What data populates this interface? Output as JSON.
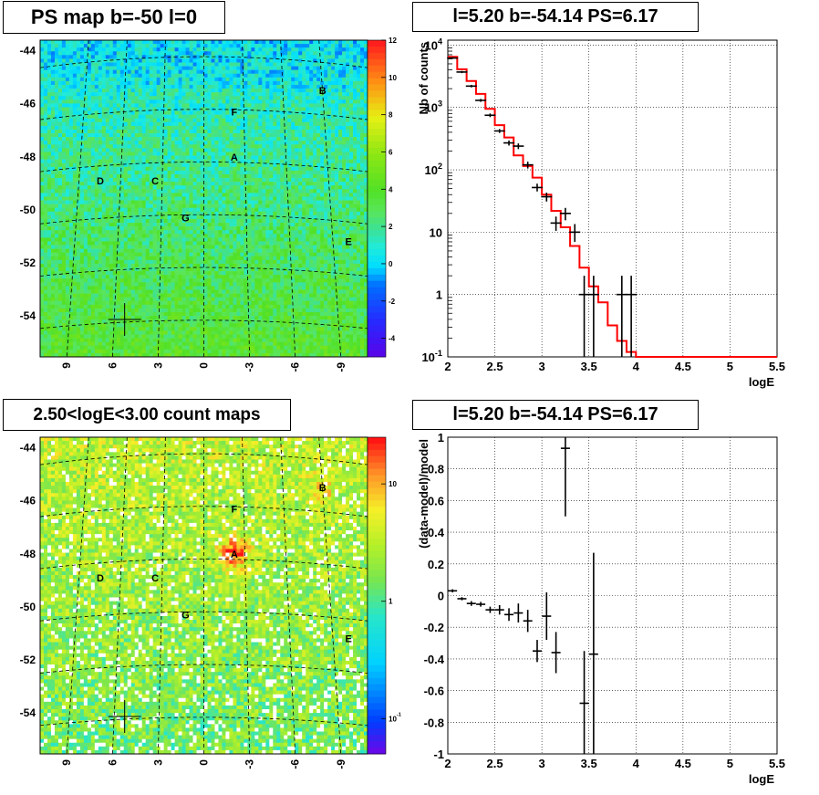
{
  "panels": {
    "tl_title": "PS map b=-50 l=0",
    "tr_title": "l=5.20 b=-54.14 PS=6.17",
    "bl_title": "2.50<logE<3.00 count maps",
    "br_title": "l=5.20 b=-54.14 PS=6.17"
  },
  "colors": {
    "model": "#ff0000",
    "data": "#000000",
    "map_bg_top": "#22e5f0",
    "map_bg_bottom": "#a6f03a"
  },
  "chart_data": [
    {
      "type": "heatmap",
      "title": "PS map b=-50 l=0",
      "yticks": [
        "-44",
        "-46",
        "-48",
        "-50",
        "-52",
        "-54"
      ],
      "xticks": [
        "9",
        "6",
        "3",
        "0",
        "-3",
        "-6",
        "-9"
      ],
      "zticks": [
        "12",
        "10",
        "8",
        "6",
        "4",
        "2",
        "0",
        "-2",
        "-4"
      ],
      "zlim": [
        -5,
        12
      ],
      "sources": [
        {
          "label": "A",
          "l": -2.0,
          "b": -48.0
        },
        {
          "label": "B",
          "l": -7.8,
          "b": -45.5
        },
        {
          "label": "C",
          "l": 3.2,
          "b": -48.9
        },
        {
          "label": "D",
          "l": 6.8,
          "b": -48.9
        },
        {
          "label": "E",
          "l": -9.5,
          "b": -51.2
        },
        {
          "label": "F",
          "l": -2.0,
          "b": -46.3
        },
        {
          "label": "G",
          "l": 1.2,
          "b": -50.3
        }
      ],
      "marker": {
        "l": 5.2,
        "b": -54.14
      }
    },
    {
      "type": "line",
      "title": "l=5.20 b=-54.14 PS=6.17",
      "xlabel": "logE",
      "ylabel": "Nb of counts",
      "xlim": [
        2,
        5.5
      ],
      "ylim": [
        0.1,
        12000
      ],
      "log_y": true,
      "xticks": [
        "2",
        "2.5",
        "3",
        "3.5",
        "4",
        "4.5",
        "5",
        "5.5"
      ],
      "yticks": [
        {
          "v": 10000,
          "t": "10",
          "e": "4"
        },
        {
          "v": 1000,
          "t": "10",
          "e": "3"
        },
        {
          "v": 100,
          "t": "10",
          "e": "2"
        },
        {
          "v": 10,
          "t": "10",
          "e": ""
        },
        {
          "v": 1,
          "t": "1",
          "e": ""
        },
        {
          "v": 0.1,
          "t": "10",
          "e": "-1"
        }
      ],
      "model_edges": [
        2.0,
        2.1,
        2.2,
        2.3,
        2.4,
        2.5,
        2.6,
        2.7,
        2.8,
        2.9,
        3.0,
        3.1,
        3.2,
        3.3,
        3.4,
        3.5,
        3.6,
        3.7,
        3.8,
        3.9,
        4.0,
        5.5
      ],
      "model_values": [
        6500,
        4100,
        2650,
        1650,
        950,
        520,
        330,
        170,
        115,
        75,
        40,
        22,
        12,
        6,
        2.7,
        1.35,
        0.75,
        0.32,
        0.18,
        0.12,
        0.1
      ],
      "data_points": [
        {
          "x": 2.05,
          "y": 6200,
          "lo": 6000,
          "hi": 6400
        },
        {
          "x": 2.15,
          "y": 3700,
          "lo": 3550,
          "hi": 3850
        },
        {
          "x": 2.25,
          "y": 2200,
          "lo": 2100,
          "hi": 2300
        },
        {
          "x": 2.35,
          "y": 1300,
          "lo": 1230,
          "hi": 1370
        },
        {
          "x": 2.45,
          "y": 750,
          "lo": 700,
          "hi": 800
        },
        {
          "x": 2.55,
          "y": 420,
          "lo": 390,
          "hi": 450
        },
        {
          "x": 2.65,
          "y": 270,
          "lo": 245,
          "hi": 295
        },
        {
          "x": 2.75,
          "y": 240,
          "lo": 215,
          "hi": 265
        },
        {
          "x": 2.85,
          "y": 120,
          "lo": 105,
          "hi": 135
        },
        {
          "x": 2.95,
          "y": 52,
          "lo": 45,
          "hi": 60
        },
        {
          "x": 3.05,
          "y": 37,
          "lo": 31,
          "hi": 43
        },
        {
          "x": 3.15,
          "y": 14,
          "lo": 10.5,
          "hi": 17.8
        },
        {
          "x": 3.25,
          "y": 20,
          "lo": 15.5,
          "hi": 24.5
        },
        {
          "x": 3.35,
          "y": 10,
          "lo": 7,
          "hi": 13.5
        },
        {
          "x": 3.45,
          "y": 1,
          "lo": 0.1,
          "hi": 2
        },
        {
          "x": 3.55,
          "y": 1,
          "lo": 0.1,
          "hi": 2
        },
        {
          "x": 3.85,
          "y": 1,
          "lo": 0.1,
          "hi": 2
        },
        {
          "x": 3.95,
          "y": 1,
          "lo": 0.1,
          "hi": 2
        }
      ]
    },
    {
      "type": "heatmap",
      "title": "2.50<logE<3.00 count maps",
      "yticks": [
        "-44",
        "-46",
        "-48",
        "-50",
        "-52",
        "-54"
      ],
      "xticks": [
        "9",
        "6",
        "3",
        "0",
        "-3",
        "-6",
        "-9"
      ],
      "zticks": [
        {
          "v": 10,
          "t": "10",
          "e": ""
        },
        {
          "v": 1,
          "t": "1",
          "e": ""
        },
        {
          "v": 0.1,
          "t": "10",
          "e": "-1"
        }
      ],
      "zlim": [
        0.05,
        25
      ],
      "log_z": true,
      "sources": [
        {
          "label": "A",
          "l": -2.0,
          "b": -48.0
        },
        {
          "label": "B",
          "l": -7.8,
          "b": -45.5
        },
        {
          "label": "C",
          "l": 3.2,
          "b": -48.9
        },
        {
          "label": "D",
          "l": 6.8,
          "b": -48.9
        },
        {
          "label": "E",
          "l": -9.5,
          "b": -51.2
        },
        {
          "label": "F",
          "l": -2.0,
          "b": -46.3
        },
        {
          "label": "G",
          "l": 1.2,
          "b": -50.3
        }
      ],
      "marker": {
        "l": 5.2,
        "b": -54.14
      }
    },
    {
      "type": "scatter",
      "title": "l=5.20 b=-54.14 PS=6.17",
      "xlabel": "logE",
      "ylabel": "(data-model)/model",
      "xlim": [
        2,
        5.5
      ],
      "ylim": [
        -1,
        1
      ],
      "xticks": [
        "2",
        "2.5",
        "3",
        "3.5",
        "4",
        "4.5",
        "5",
        "5.5"
      ],
      "yticks": [
        "1",
        "0.8",
        "0.6",
        "0.4",
        "0.2",
        "0",
        "-0.2",
        "-0.4",
        "-0.6",
        "-0.8",
        "-1"
      ],
      "data_points": [
        {
          "x": 2.05,
          "y": 0.03,
          "err": 0.01
        },
        {
          "x": 2.15,
          "y": -0.02,
          "err": 0.01
        },
        {
          "x": 2.25,
          "y": -0.05,
          "err": 0.015
        },
        {
          "x": 2.35,
          "y": -0.055,
          "err": 0.015
        },
        {
          "x": 2.45,
          "y": -0.09,
          "err": 0.02
        },
        {
          "x": 2.55,
          "y": -0.09,
          "err": 0.03
        },
        {
          "x": 2.65,
          "y": -0.12,
          "err": 0.04
        },
        {
          "x": 2.75,
          "y": -0.11,
          "err": 0.06
        },
        {
          "x": 2.85,
          "y": -0.16,
          "err": 0.07
        },
        {
          "x": 2.95,
          "y": -0.35,
          "err": 0.07
        },
        {
          "x": 3.05,
          "y": -0.13,
          "err": 0.15
        },
        {
          "x": 3.15,
          "y": -0.36,
          "err": 0.13
        },
        {
          "x": 3.25,
          "y": 0.93,
          "err": 0.43
        },
        {
          "x": 3.45,
          "y": -0.68,
          "err": 0.33
        },
        {
          "x": 3.55,
          "y": -0.37,
          "err": 0.64
        }
      ]
    }
  ]
}
